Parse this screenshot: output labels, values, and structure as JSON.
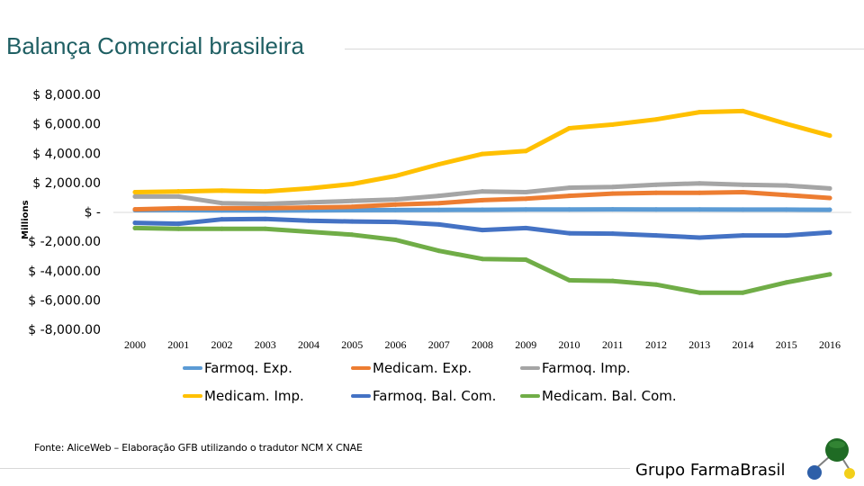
{
  "header": {
    "title": "Balança Comercial brasileira"
  },
  "chart_data": {
    "type": "line",
    "title": "",
    "xlabel": "",
    "ylabel": "Millions",
    "ylim": [
      -8000,
      8000
    ],
    "yticks": [
      8000,
      6000,
      4000,
      2000,
      0,
      -2000,
      -4000,
      -6000,
      -8000
    ],
    "ytick_labels": [
      "$ 8,000.00",
      "$ 6,000.00",
      "$ 4,000.00",
      "$ 2,000.00",
      "$ -",
      "$ -2,000.00",
      "$ -4,000.00",
      "$ -6,000.00",
      "$ -8,000.00"
    ],
    "categories": [
      "2000",
      "2001",
      "2002",
      "2003",
      "2004",
      "2005",
      "2006",
      "2007",
      "2008",
      "2009",
      "2010",
      "2011",
      "2012",
      "2013",
      "2014",
      "2015",
      "2016"
    ],
    "grid": false,
    "legend_position": "bottom",
    "series": [
      {
        "name": "Farmoq. Exp.",
        "color": "#5b9bd5",
        "values": [
          120,
          130,
          110,
          100,
          110,
          120,
          130,
          140,
          150,
          170,
          170,
          180,
          170,
          170,
          160,
          160,
          150
        ]
      },
      {
        "name": "Medicam. Exp.",
        "color": "#ed7d31",
        "values": [
          180,
          250,
          250,
          250,
          300,
          350,
          500,
          600,
          800,
          900,
          1100,
          1250,
          1300,
          1300,
          1350,
          1150,
          950
        ]
      },
      {
        "name": "Farmoq. Imp.",
        "color": "#a5a5a5",
        "values": [
          1050,
          1050,
          600,
          550,
          650,
          750,
          850,
          1100,
          1400,
          1350,
          1650,
          1700,
          1850,
          1950,
          1850,
          1800,
          1600
        ]
      },
      {
        "name": "Medicam. Imp.",
        "color": "#ffc000",
        "values": [
          1350,
          1400,
          1450,
          1400,
          1600,
          1900,
          2450,
          3250,
          3950,
          4150,
          5700,
          5950,
          6300,
          6800,
          6870,
          6000,
          5200
        ]
      },
      {
        "name": "Farmoq. Bal. Com.",
        "color": "#4472c4",
        "values": [
          -740,
          -800,
          -500,
          -480,
          -600,
          -650,
          -680,
          -850,
          -1230,
          -1100,
          -1450,
          -1480,
          -1600,
          -1750,
          -1600,
          -1600,
          -1400
        ]
      },
      {
        "name": "Medicam. Bal. Com.",
        "color": "#70ad47",
        "values": [
          -1100,
          -1150,
          -1150,
          -1150,
          -1350,
          -1550,
          -1900,
          -2650,
          -3200,
          -3250,
          -4650,
          -4700,
          -4950,
          -5500,
          -5500,
          -4800,
          -4250
        ]
      }
    ]
  },
  "footer": {
    "source": "Fonte: AliceWeb – Elaboração GFB utilizando o tradutor NCM X CNAE",
    "brand": "Grupo FarmaBrasil",
    "logo_icon": "molecule-logo-icon"
  }
}
